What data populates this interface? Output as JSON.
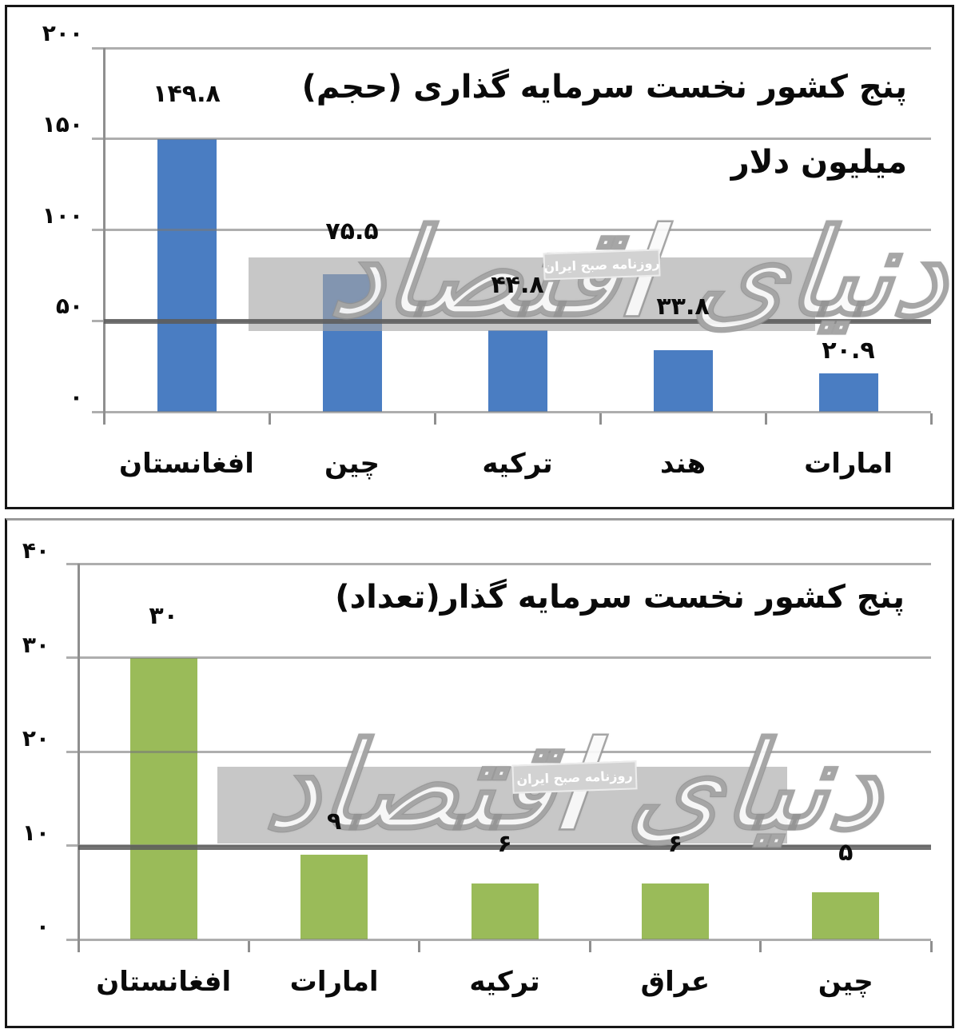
{
  "watermark": {
    "big_text": "دنیای اقتصاد",
    "small_text": "روزنامه صبح ایران"
  },
  "colors": {
    "bar_blue": "#4a7dc2",
    "bar_green": "#9abb59",
    "gridline": "#787878",
    "dark_rule": "#5a5a5a",
    "watermark_band": "#a5a5a5",
    "text": "#0a0a0a",
    "background": "#ffffff"
  },
  "chart_data": [
    {
      "id": "volume",
      "type": "bar",
      "title": "پنج کشور نخست سرمایه گذاری (حجم)",
      "subtitle": "میلیون دلار",
      "categories": [
        "افغانستان",
        "چین",
        "ترکیه",
        "هند",
        "امارات"
      ],
      "values": [
        149.8,
        75.5,
        44.8,
        33.8,
        20.9
      ],
      "value_labels": [
        "۱۴۹.۸",
        "۷۵.۵",
        "۴۴.۸",
        "۳۳.۸",
        "۲۰.۹"
      ],
      "y_ticks": [
        200,
        150,
        100,
        50,
        0
      ],
      "y_tick_labels": [
        "۲۰۰",
        "۱۵۰",
        "۱۰۰",
        "۵۰",
        "۰"
      ],
      "ylim": [
        0,
        200
      ],
      "bar_color": "#4a7dc2",
      "grid": true,
      "legend": false
    },
    {
      "id": "count",
      "type": "bar",
      "title": "پنج کشور نخست سرمایه گذار(تعداد)",
      "subtitle": "",
      "categories": [
        "افغانستان",
        "امارات",
        "ترکیه",
        "عراق",
        "چین"
      ],
      "values": [
        30,
        9,
        6,
        6,
        5
      ],
      "value_labels": [
        "۳۰",
        "۹",
        "۶",
        "۶",
        "۵"
      ],
      "y_ticks": [
        40,
        30,
        20,
        10,
        0
      ],
      "y_tick_labels": [
        "۴۰",
        "۳۰",
        "۲۰",
        "۱۰",
        "۰"
      ],
      "ylim": [
        0,
        40
      ],
      "bar_color": "#9abb59",
      "grid": true,
      "legend": false
    }
  ]
}
